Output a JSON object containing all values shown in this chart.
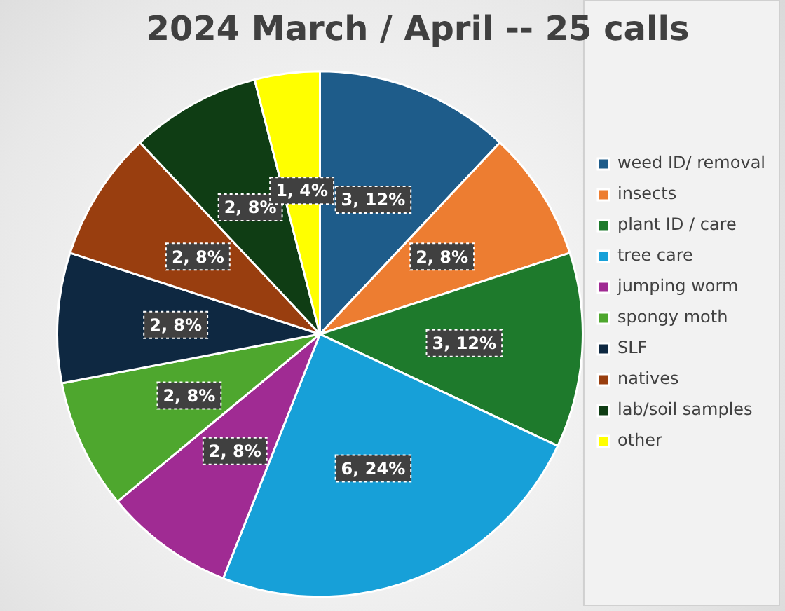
{
  "chart_data": {
    "type": "pie",
    "title": "2024 March / April -- 25 calls",
    "categories": [
      "weed ID/ removal",
      "insects",
      "plant ID / care",
      "tree care",
      "jumping worm",
      "spongy moth",
      "SLF",
      "natives",
      "lab/soil samples",
      "other"
    ],
    "values": [
      3,
      2,
      3,
      6,
      2,
      2,
      2,
      2,
      2,
      1
    ],
    "colors": [
      "#1e5c8a",
      "#ed7d31",
      "#1e7a2c",
      "#17a0d8",
      "#a02b93",
      "#4ea72e",
      "#0e2841",
      "#993e0f",
      "#0f3d14",
      "#ffff00"
    ],
    "value_labels": [
      "3, 12%",
      "2, 8%",
      "3, 12%",
      "6, 24%",
      "2, 8%",
      "2, 8%",
      "2, 8%",
      "2, 8%",
      "2, 8%",
      "1, 4%"
    ],
    "legend": "right"
  }
}
